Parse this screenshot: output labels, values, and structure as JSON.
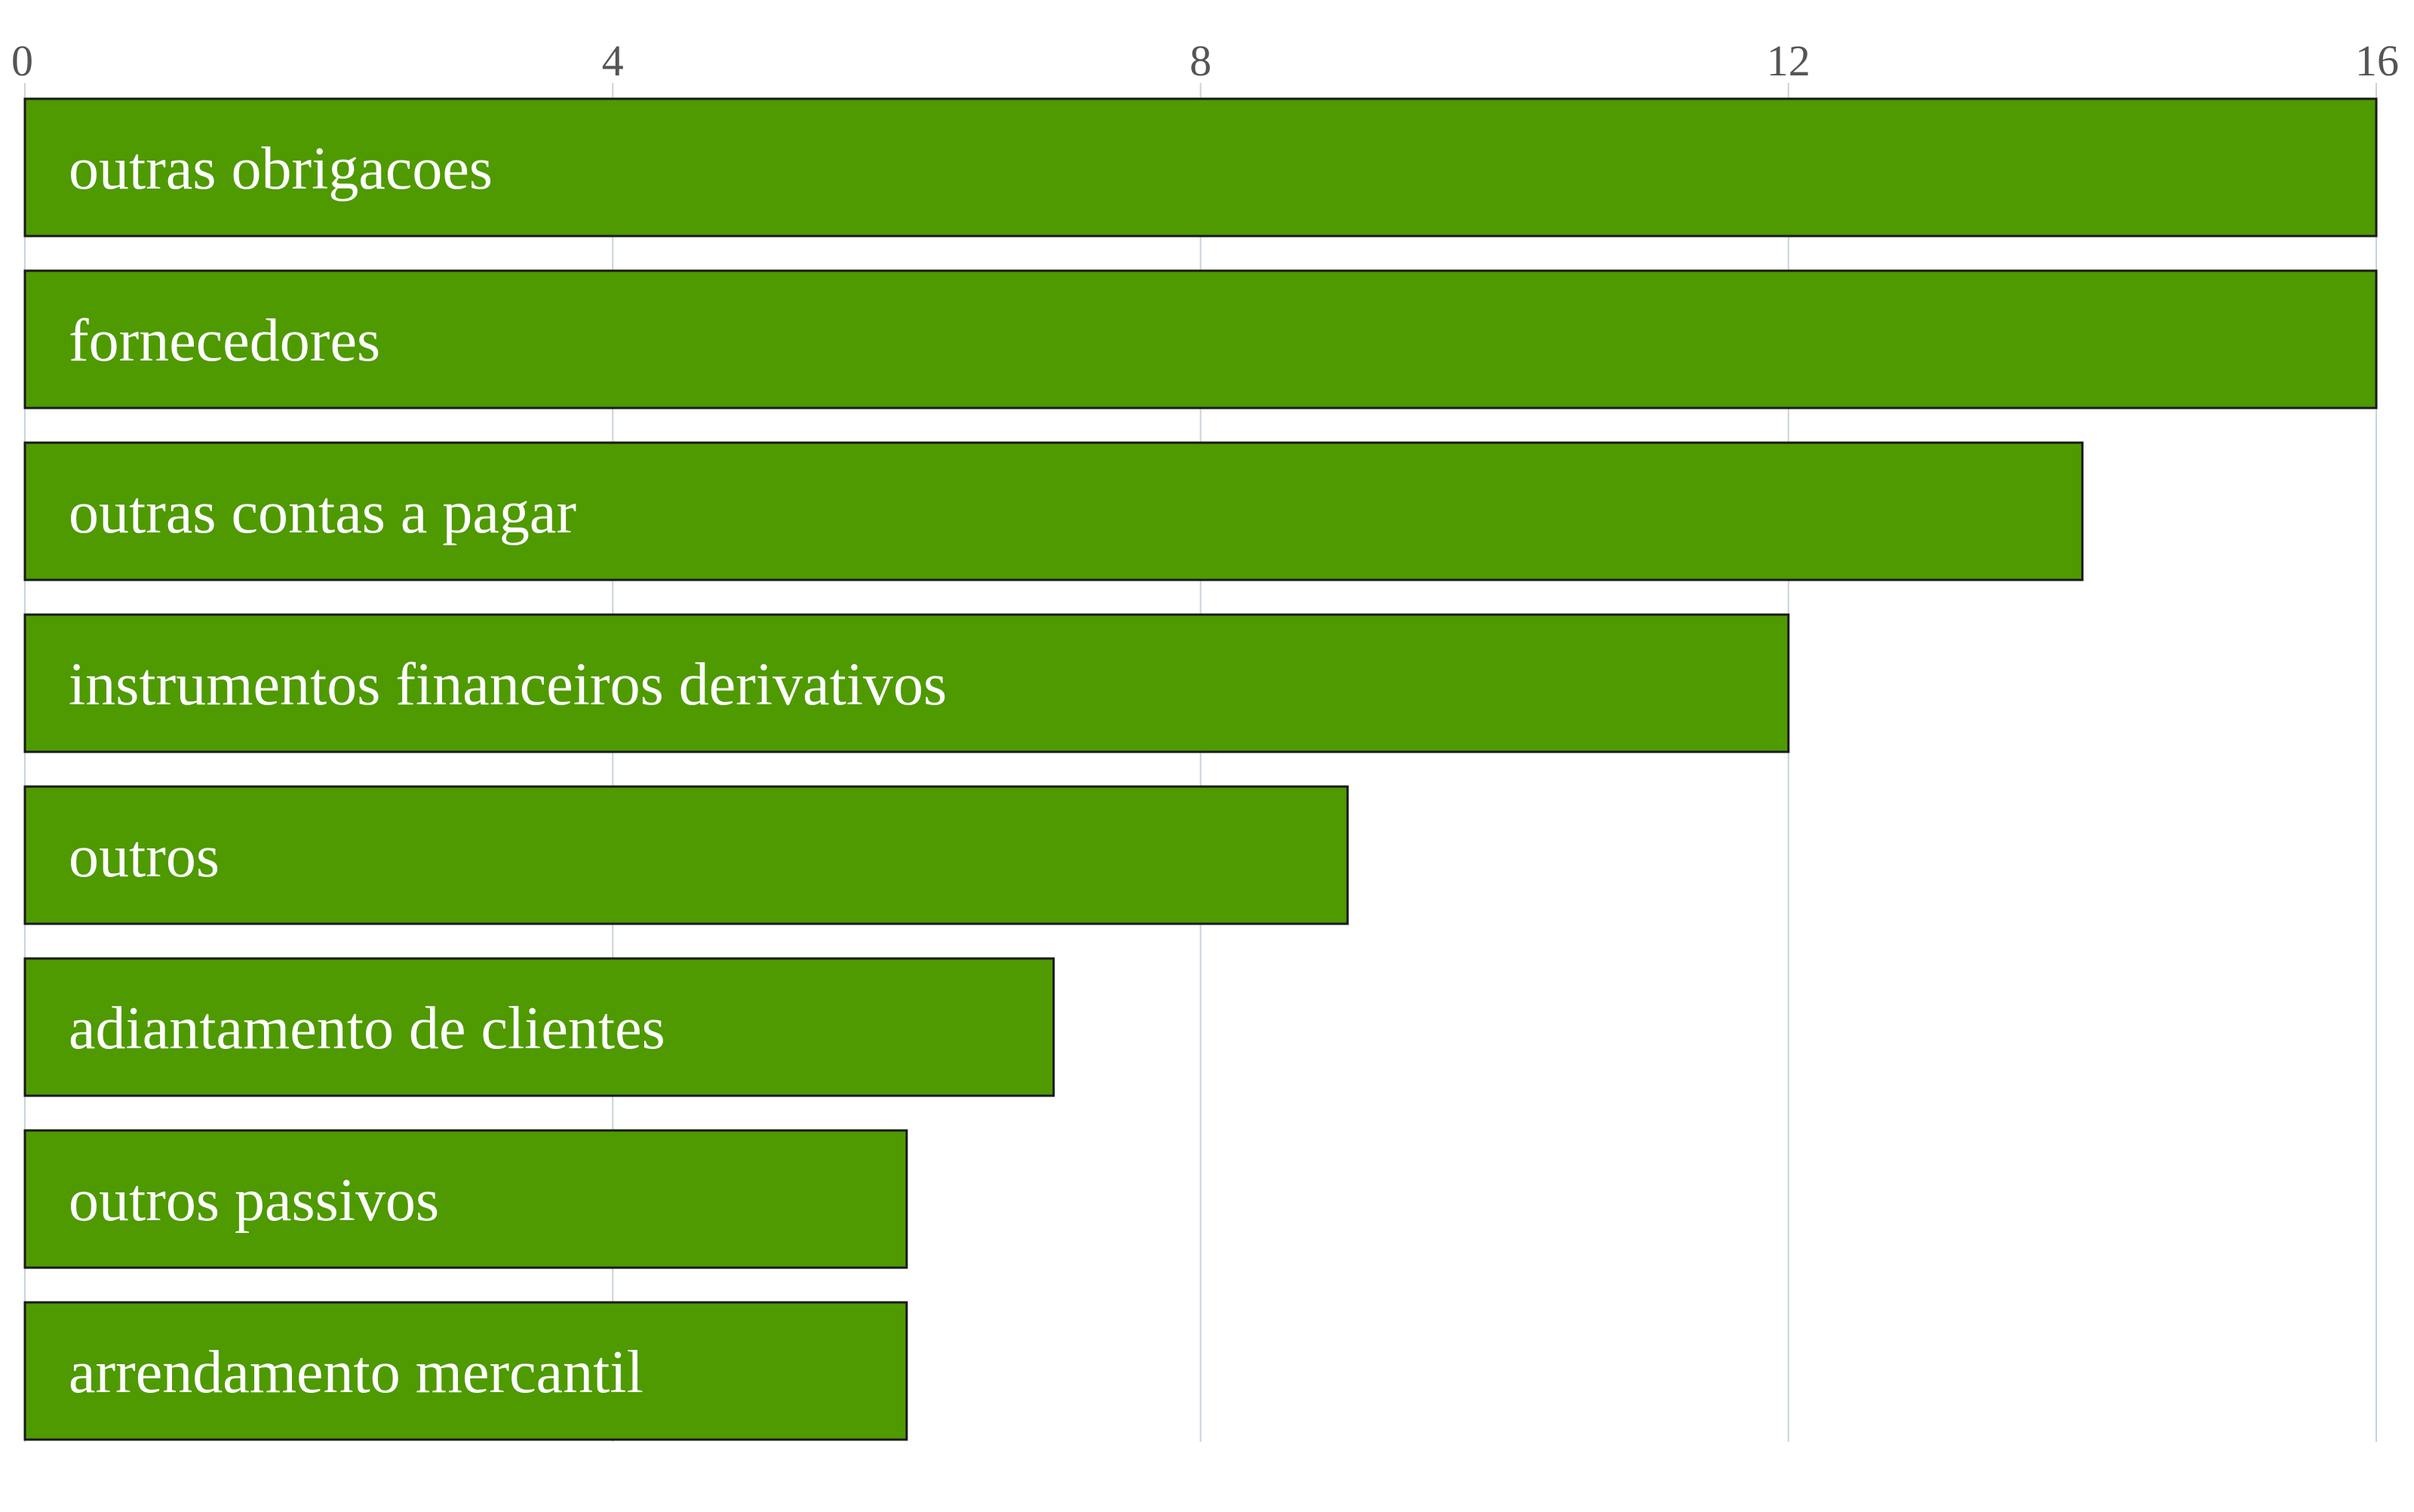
{
  "chart_data": {
    "type": "bar",
    "orientation": "horizontal",
    "categories": [
      "outras obrigacoes",
      "fornecedores",
      "outras contas a pagar",
      "instrumentos financeiros derivativos",
      "outros",
      "adiantamento de clientes",
      "outros passivos",
      "arrendamento mercantil"
    ],
    "values": [
      16,
      16,
      14,
      12,
      9,
      7,
      6,
      6
    ],
    "xlim": [
      0,
      16
    ],
    "xticks": [
      0,
      4,
      8,
      12,
      16
    ],
    "tick_labels": [
      "0",
      "4",
      "8",
      "12",
      "16"
    ],
    "axis_position": "top",
    "grid": true,
    "title": "",
    "xlabel": "",
    "ylabel": "",
    "legend": "none"
  },
  "colors": {
    "bar_fill": "#4e9a00",
    "bar_stroke": "#1a1a1a",
    "grid": "#c9d3dc",
    "label_inside": "#ffffff",
    "label_outside": "#4e9a00",
    "tick_text": "#555555"
  }
}
